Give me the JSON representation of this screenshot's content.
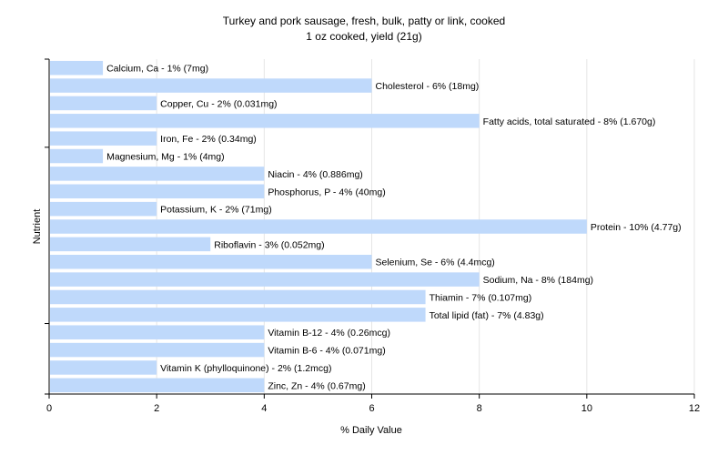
{
  "chart_data": {
    "type": "bar",
    "orientation": "horizontal",
    "title": "Turkey and pork sausage, fresh, bulk, patty or link, cooked",
    "subtitle": "1 oz cooked, yield (21g)",
    "xlabel": "% Daily Value",
    "ylabel": "Nutrient",
    "xlim": [
      0,
      12
    ],
    "xticks": [
      "0",
      "2",
      "4",
      "6",
      "8",
      "10",
      "12"
    ],
    "grid": true,
    "bar_color": "#bfd9fb",
    "categories": [
      "Calcium, Ca",
      "Cholesterol",
      "Copper, Cu",
      "Fatty acids, total saturated",
      "Iron, Fe",
      "Magnesium, Mg",
      "Niacin",
      "Phosphorus, P",
      "Potassium, K",
      "Protein",
      "Riboflavin",
      "Selenium, Se",
      "Sodium, Na",
      "Thiamin",
      "Total lipid (fat)",
      "Vitamin B-12",
      "Vitamin B-6",
      "Vitamin K (phylloquinone)",
      "Zinc, Zn"
    ],
    "values": [
      1,
      6,
      2,
      8,
      2,
      1,
      4,
      4,
      2,
      10,
      3,
      6,
      8,
      7,
      7,
      4,
      4,
      2,
      4
    ],
    "labels": [
      "Calcium, Ca - 1% (7mg)",
      "Cholesterol - 6% (18mg)",
      "Copper, Cu - 2% (0.031mg)",
      "Fatty acids, total saturated - 8% (1.670g)",
      "Iron, Fe - 2% (0.34mg)",
      "Magnesium, Mg - 1% (4mg)",
      "Niacin - 4% (0.886mg)",
      "Phosphorus, P - 4% (40mg)",
      "Potassium, K - 2% (71mg)",
      "Protein - 10% (4.77g)",
      "Riboflavin - 3% (0.052mg)",
      "Selenium, Se - 6% (4.4mcg)",
      "Sodium, Na - 8% (184mg)",
      "Thiamin - 7% (0.107mg)",
      "Total lipid (fat) - 7% (4.83g)",
      "Vitamin B-12 - 4% (0.26mcg)",
      "Vitamin B-6 - 4% (0.071mg)",
      "Vitamin K (phylloquinone) - 2% (1.2mcg)",
      "Zinc, Zn - 4% (0.67mg)"
    ]
  }
}
